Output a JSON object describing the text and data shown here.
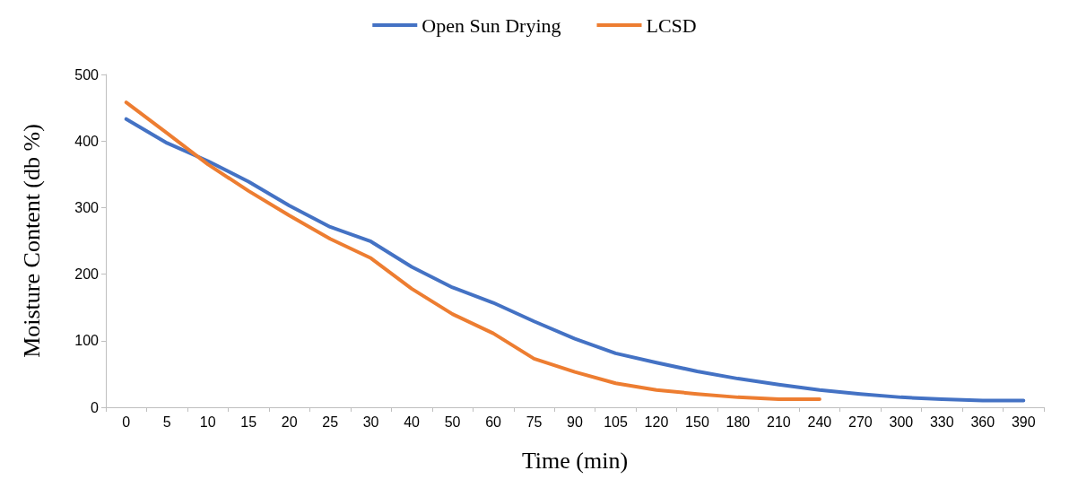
{
  "chart_data": {
    "type": "line",
    "xlabel": "Time (min)",
    "ylabel": "Moisture Content (db %)",
    "categories": [
      "0",
      "5",
      "10",
      "15",
      "20",
      "25",
      "30",
      "40",
      "50",
      "60",
      "75",
      "90",
      "105",
      "120",
      "150",
      "180",
      "210",
      "240",
      "270",
      "300",
      "330",
      "360",
      "390"
    ],
    "series": [
      {
        "name": "Open Sun Drying",
        "color": "#4472c4",
        "values": [
          433,
          397,
          370,
          339,
          303,
          271,
          249,
          211,
          180,
          157,
          129,
          103,
          81,
          67,
          54,
          43,
          34,
          26,
          20,
          15,
          12,
          10,
          10
        ]
      },
      {
        "name": "LCSD",
        "color": "#ed7d31",
        "values": [
          458,
          412,
          365,
          325,
          288,
          253,
          224,
          178,
          140,
          111,
          73,
          53,
          36,
          26,
          20,
          15,
          12,
          12,
          null,
          null,
          null,
          null,
          null
        ]
      }
    ],
    "ylim": [
      0,
      500
    ],
    "yticks": [
      0,
      100,
      200,
      300,
      400,
      500
    ],
    "grid": false,
    "legend": "top",
    "marker": "none",
    "line_style": "solid"
  }
}
